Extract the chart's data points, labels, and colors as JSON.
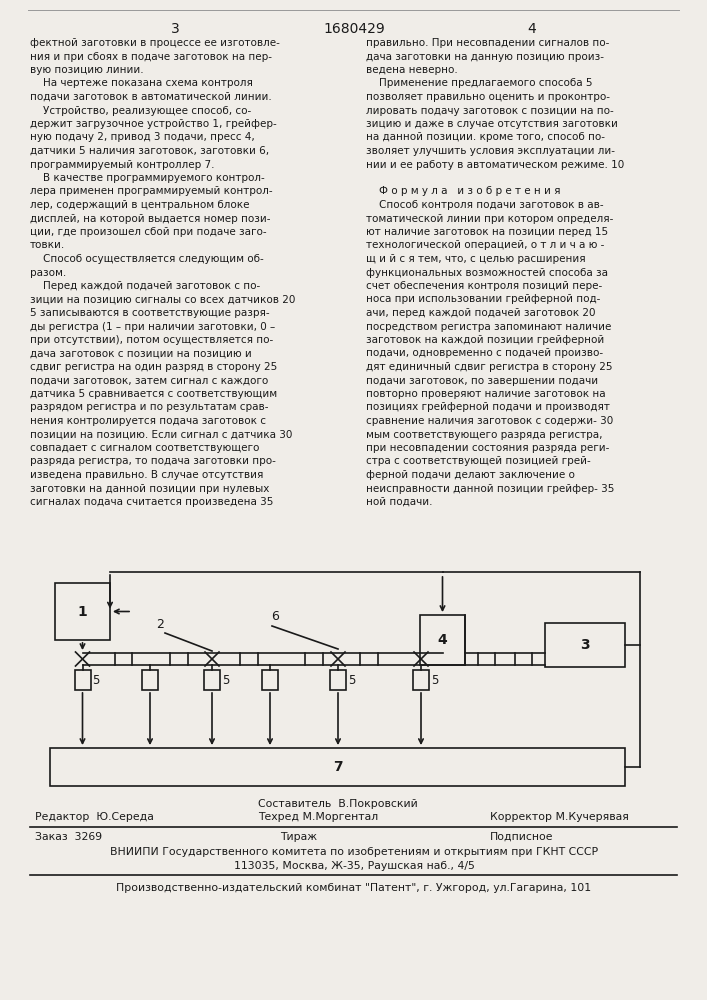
{
  "bg_color": "#f0ede8",
  "text_color": "#1a1a1a",
  "page_num_left": "3",
  "patent_num": "1680429",
  "page_num_right": "4",
  "left_col_lines": [
    "фектной заготовки в процессе ее изготовле-",
    "ния и при сбоях в подаче заготовок на пер-",
    "вую позицию линии.",
    "    На чертеже показана схема контроля",
    "подачи заготовок в автоматической линии.",
    "    Устройство, реализующее способ, со-",
    "держит загрузочное устройство 1, грейфер-",
    "ную подачу 2, привод 3 подачи, пресс 4,",
    "датчики 5 наличия заготовок, заготовки 6,",
    "программируемый контроллер 7.",
    "    В качестве программируемого контрол-",
    "лера применен программируемый контрол-",
    "лер, содержащий в центральном блоке",
    "дисплей, на которой выдается номер пози-",
    "ции, где произошел сбой при подаче заго-",
    "товки.",
    "    Способ осуществляется следующим об-",
    "разом.",
    "    Перед каждой подачей заготовок с по-",
    "зиции на позицию сигналы со всех датчиков 20",
    "5 записываются в соответствующие разря-",
    "ды регистра (1 – при наличии заготовки, 0 –",
    "при отсутствии), потом осуществляется по-",
    "дача заготовок с позиции на позицию и",
    "сдвиг регистра на один разряд в сторону 25",
    "подачи заготовок, затем сигнал с каждого",
    "датчика 5 сравнивается с соответствующим",
    "разрядом регистра и по результатам срав-",
    "нения контролируется подача заготовок с",
    "позиции на позицию. Если сигнал с датчика 30",
    "совпадает с сигналом соответствующего"
  ],
  "right_col_lines": [
    "правильно. При несовпадении сигналов по-",
    "дача заготовки на данную позицию произ-",
    "ведена неверно.",
    "    Применение предлагаемого способа 5",
    "позволяет правильно оценить и проконтро-",
    "лировать подачу заготовок с позиции на по-",
    "зицию и даже в случае отсутствия заготовки",
    "на данной позиции. кроме того, способ по-",
    "зволяет улучшить условия эксплуатации ли-",
    "нии и ее работу в автоматическом режиме. 10",
    "",
    "    Ф о р м у л а   и з о б р е т е н и я",
    "    Способ контроля подачи заготовок в ав-",
    "томатической линии при котором определя-",
    "ют наличие заготовок на позиции перед 15",
    "технологической операцией, о т л и ч а ю -",
    "щ и й с я тем, что, с целью расширения",
    "функциональных возможностей способа за",
    "счет обеспечения контроля позиций пере-",
    "носа при использовании грейферной под-",
    "ачи, перед каждой подачей заготовок 20",
    "посредством регистра запоминают наличие",
    "заготовок на каждой позиции грейферной",
    "подачи, одновременно с подачей произво-",
    "дят единичный сдвиг регистра в сторону 25",
    "подачи заготовок, по завершении подачи",
    "повторно проверяют наличие заготовок на",
    "позициях грейферной подачи и производят",
    "сравнение наличия заготовок с содержи- 30",
    "мым соответствующего разряда регистра,",
    "при несовпадении состояния разряда реги-",
    "стра с соответствующей позицией грей-",
    "ферной подачи делают заключение о",
    "неисправности данной позиции грейфер- 35",
    "ной подачи."
  ],
  "bottom_left_lines": [
    "разряда регистра, то подача заготовки про-",
    "изведена правильно. В случае отсутствия",
    "заготовки на данной позиции при нулевых",
    "сигналах подача считается произведена 35"
  ]
}
